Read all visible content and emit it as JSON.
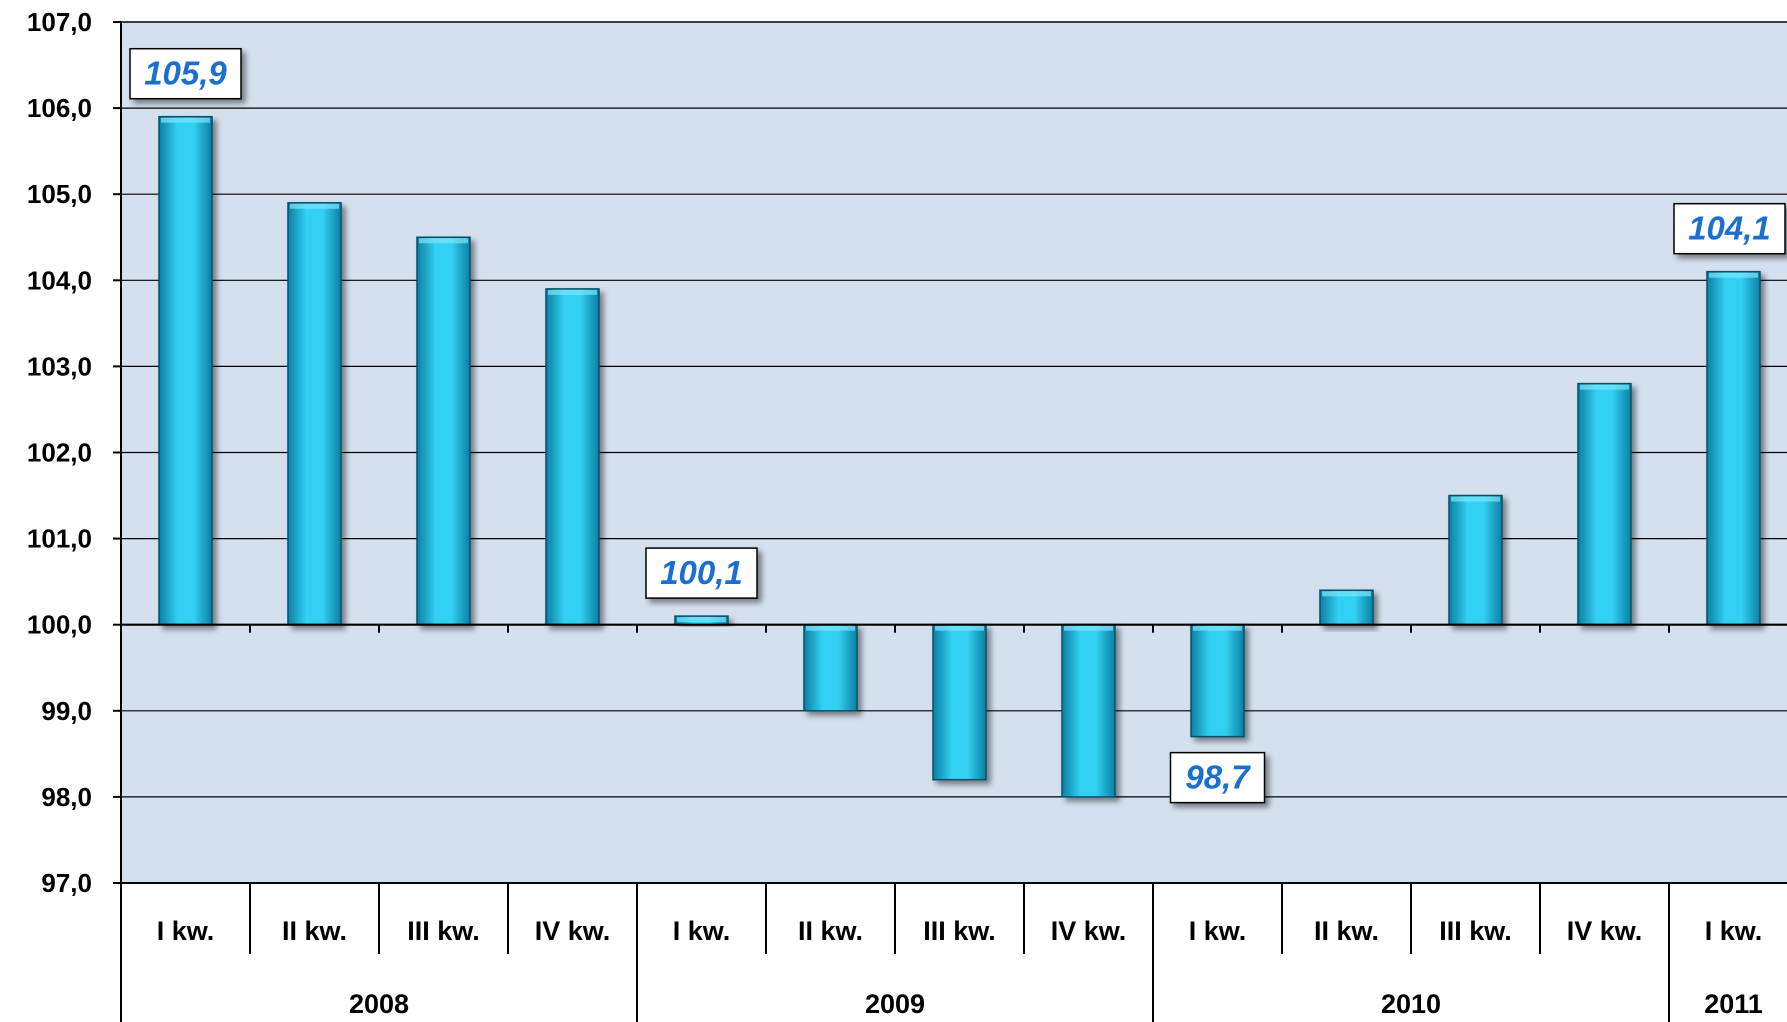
{
  "chart_data": {
    "type": "bar",
    "baseline": 100,
    "ylim": [
      97,
      107
    ],
    "ystep": 1,
    "yticks": [
      "107,0",
      "106,0",
      "105,0",
      "104,0",
      "103,0",
      "102,0",
      "101,0",
      "100,0",
      "99,0",
      "98,0",
      "97,0"
    ],
    "grid": true,
    "legend": "none",
    "categories": [
      "I kw.",
      "II kw.",
      "III kw.",
      "IV kw.",
      "I kw.",
      "II kw.",
      "III kw.",
      "IV kw.",
      "I kw.",
      "II kw.",
      "III kw.",
      "IV kw.",
      "I kw."
    ],
    "groups": [
      {
        "label": "2008",
        "count": 4
      },
      {
        "label": "2009",
        "count": 4
      },
      {
        "label": "2010",
        "count": 4
      },
      {
        "label": "2011",
        "count": 1
      }
    ],
    "values": [
      105.9,
      104.9,
      104.5,
      103.9,
      100.1,
      99.0,
      98.2,
      98.0,
      98.7,
      100.4,
      101.5,
      102.8,
      104.1
    ],
    "data_labels": [
      {
        "index": 0,
        "text": "105,9"
      },
      {
        "index": 4,
        "text": "100,1"
      },
      {
        "index": 8,
        "text": "98,7"
      },
      {
        "index": 12,
        "text": "104,1"
      }
    ],
    "colors": {
      "plot_bg": "#d4e0ee",
      "bar_light": "#33d0f2",
      "bar_dark": "#0a7fa3",
      "label_text": "#1a6fcf"
    }
  }
}
